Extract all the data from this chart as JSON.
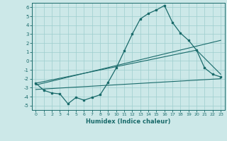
{
  "xlabel": "Humidex (Indice chaleur)",
  "xlim": [
    -0.5,
    23.5
  ],
  "ylim": [
    -5.5,
    6.5
  ],
  "xticks": [
    0,
    1,
    2,
    3,
    4,
    5,
    6,
    7,
    8,
    9,
    10,
    11,
    12,
    13,
    14,
    15,
    16,
    17,
    18,
    19,
    20,
    21,
    22,
    23
  ],
  "yticks": [
    -5,
    -4,
    -3,
    -2,
    -1,
    0,
    1,
    2,
    3,
    4,
    5,
    6
  ],
  "bg_color": "#cce8e8",
  "line_color": "#1a6b6b",
  "main_x": [
    0,
    1,
    2,
    3,
    4,
    5,
    6,
    7,
    8,
    9,
    10,
    11,
    12,
    13,
    14,
    15,
    16,
    17,
    18,
    19,
    20,
    21,
    22,
    23
  ],
  "main_y": [
    -2.5,
    -3.3,
    -3.6,
    -3.7,
    -4.8,
    -4.1,
    -4.4,
    -4.1,
    -3.8,
    -2.4,
    -0.8,
    1.1,
    3.0,
    4.7,
    5.3,
    5.7,
    6.2,
    4.3,
    3.1,
    2.3,
    1.2,
    -0.8,
    -1.5,
    -1.8
  ],
  "line2_x": [
    0,
    23
  ],
  "line2_y": [
    -2.7,
    2.3
  ],
  "line3_x": [
    0,
    23
  ],
  "line3_y": [
    -3.2,
    -2.0
  ],
  "line4_x": [
    0,
    20,
    23
  ],
  "line4_y": [
    -2.5,
    1.2,
    -1.5
  ]
}
